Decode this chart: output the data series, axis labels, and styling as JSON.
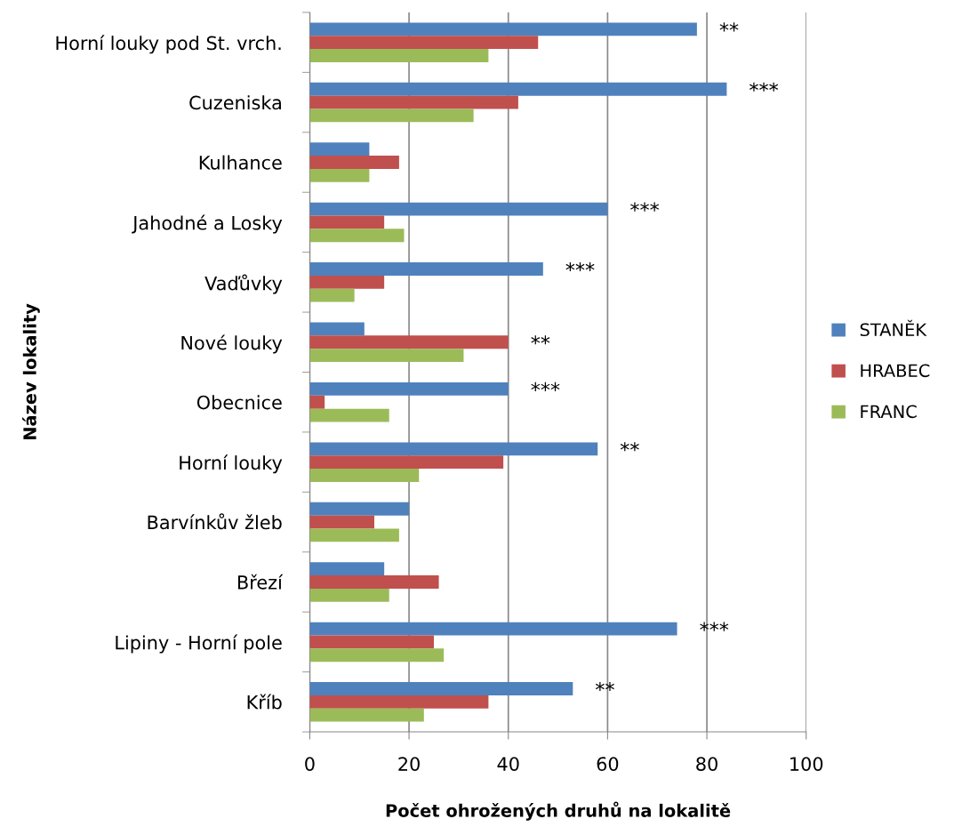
{
  "chart_data": {
    "type": "bar",
    "orientation": "horizontal",
    "xlabel": "Počet ohrožených druhů na lokalitě",
    "ylabel": "Název lokality",
    "categories": [
      "Horní louky pod St. vrch.",
      "Cuzeniska",
      "Kulhance",
      "Jahodné a Losky",
      "Vaďůvky",
      "Nové louky",
      "Obecnice",
      "Horní louky",
      "Barvínkův žleb",
      "Březí",
      "Lipiny - Horní pole",
      "Kříb"
    ],
    "series": [
      {
        "name": "STANĚK",
        "color": "#4f81bd",
        "values": [
          78,
          84,
          12,
          60,
          47,
          11,
          40,
          58,
          20,
          15,
          74,
          53
        ],
        "value_labels": [
          "**",
          "***",
          null,
          "***",
          "***",
          null,
          "***",
          "**",
          null,
          null,
          "***",
          "**"
        ]
      },
      {
        "name": "HRABEC",
        "color": "#c0504d",
        "values": [
          46,
          42,
          18,
          15,
          15,
          40,
          3,
          39,
          13,
          26,
          25,
          36
        ],
        "value_labels": [
          null,
          null,
          null,
          null,
          null,
          "**",
          null,
          null,
          null,
          null,
          null,
          null
        ]
      },
      {
        "name": "FRANC",
        "color": "#9bbb59",
        "values": [
          36,
          33,
          12,
          19,
          9,
          31,
          16,
          22,
          18,
          16,
          27,
          23
        ]
      }
    ],
    "xlim": [
      0,
      100
    ],
    "xticks": [
      0,
      20,
      40,
      60,
      80,
      100
    ],
    "grid": "x",
    "legend": "right"
  }
}
